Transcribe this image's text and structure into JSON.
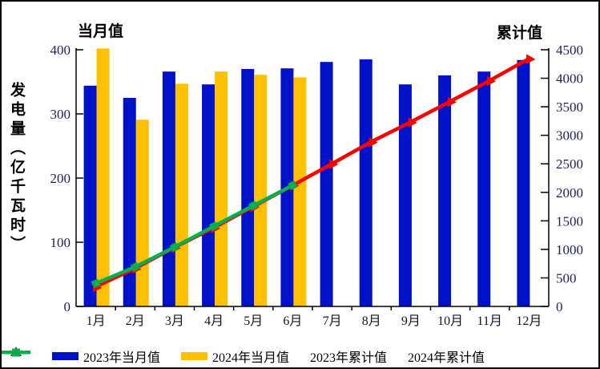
{
  "figure": {
    "left_axis_header": "当月值",
    "right_axis_header": "累计值",
    "y_axis_title": "发电量（亿千瓦时）"
  },
  "chart_data": {
    "type": "bar+line combo",
    "categories": [
      "1月",
      "2月",
      "3月",
      "4月",
      "5月",
      "6月",
      "7月",
      "8月",
      "9月",
      "10月",
      "11月",
      "12月"
    ],
    "series": [
      {
        "name": "2023年当月值",
        "type": "bar",
        "axis": "left",
        "color": "#0012c9",
        "marker": "none",
        "values": [
          344,
          325,
          366,
          346,
          370,
          371,
          381,
          385,
          346,
          360,
          366,
          384
        ]
      },
      {
        "name": "2024年当月值",
        "type": "bar",
        "axis": "left",
        "color": "#ffc000",
        "marker": "none",
        "values": [
          402,
          291,
          347,
          366,
          361,
          357,
          null,
          null,
          null,
          null,
          null,
          null
        ]
      },
      {
        "name": "2023年累计值",
        "type": "line",
        "axis": "right",
        "color": "#ff0000",
        "marker": "triangle",
        "values": [
          344,
          669,
          1035,
          1381,
          1751,
          2122,
          2503,
          2888,
          3234,
          3594,
          3960,
          4344
        ]
      },
      {
        "name": "2024年累计值",
        "type": "line",
        "axis": "right",
        "color": "#00b050",
        "marker": "square",
        "values": [
          402,
          693,
          1040,
          1406,
          1767,
          2124,
          null,
          null,
          null,
          null,
          null,
          null
        ]
      }
    ],
    "left_axis": {
      "title": "当月值",
      "ticks": [
        0,
        100,
        200,
        300,
        400
      ],
      "range": [
        0,
        400
      ]
    },
    "right_axis": {
      "title": "累计值",
      "ticks": [
        0,
        500,
        1000,
        1500,
        2000,
        2500,
        3000,
        3500,
        4000,
        4500
      ],
      "range": [
        0,
        4500
      ]
    },
    "grid": false,
    "legend_position": "bottom"
  }
}
